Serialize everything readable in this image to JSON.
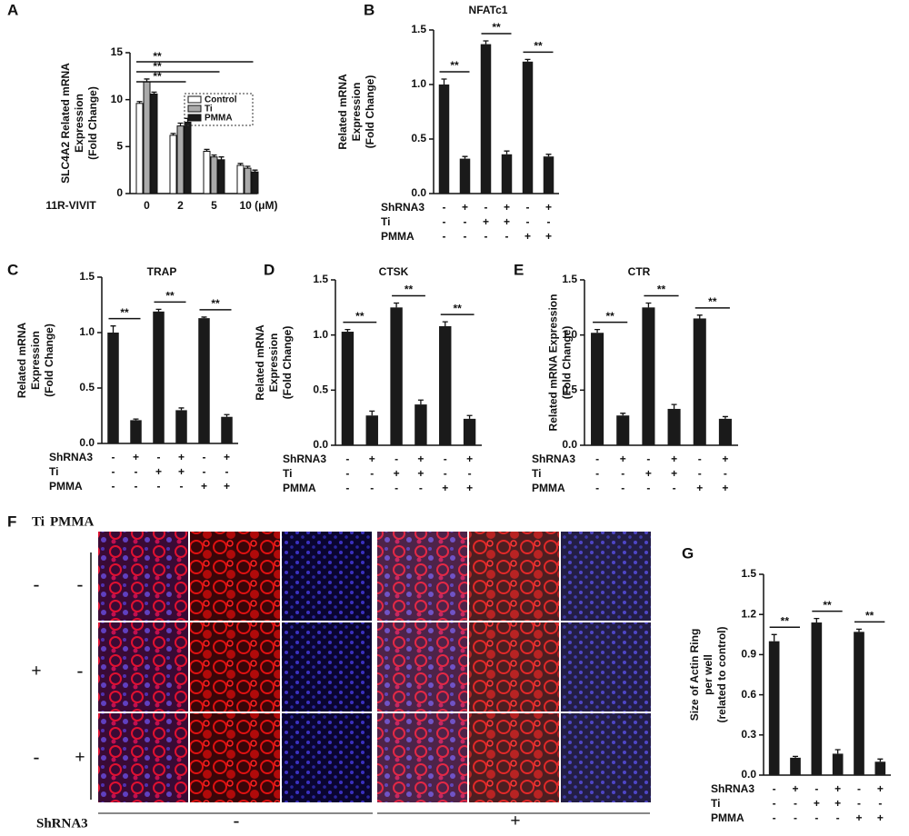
{
  "panel_labels": [
    "A",
    "B",
    "C",
    "D",
    "E",
    "F",
    "G"
  ],
  "chart_data": [
    {
      "type": "grouped-bar",
      "ylabel": [
        "SLC4A2 Related mRNA",
        "Expression",
        "(Fold Change)"
      ],
      "xlabel": "11R-VIVIT",
      "categories": [
        "0",
        "2",
        "5",
        "10 (μM)"
      ],
      "series": [
        {
          "name": "Control",
          "color": "#ffffff",
          "values": [
            9.6,
            6.2,
            4.5,
            3.0
          ],
          "errors": [
            0.2,
            0.2,
            0.2,
            0.2
          ]
        },
        {
          "name": "Ti",
          "color": "#aaaaaa",
          "values": [
            11.9,
            7.2,
            3.9,
            2.7
          ],
          "errors": [
            0.3,
            0.3,
            0.2,
            0.2
          ]
        },
        {
          "name": "PMMA",
          "color": "#1a1a1a",
          "values": [
            10.6,
            7.6,
            3.6,
            2.3
          ],
          "errors": [
            0.2,
            0.4,
            0.3,
            0.2
          ]
        }
      ],
      "ylim": [
        0,
        15
      ],
      "yticks": [
        0,
        5,
        10,
        15
      ],
      "annotations": [
        "**",
        "**",
        "**"
      ]
    },
    {
      "type": "bar",
      "title": "NFATc1",
      "ylabel": [
        "Related mRNA",
        "Expression",
        "(Fold Change)"
      ],
      "color": "#1a1a1a",
      "values": [
        1.0,
        0.32,
        1.37,
        0.36,
        1.21,
        0.34
      ],
      "errors": [
        0.05,
        0.02,
        0.03,
        0.03,
        0.02,
        0.02
      ],
      "ylim": [
        0,
        1.5
      ],
      "yticks": [
        {
          "value": 0,
          "label": "0.0"
        },
        0.5,
        {
          "value": 1,
          "label": "1.0"
        },
        1.5
      ],
      "conditions": [
        {
          "name": "ShRNA3",
          "signs": [
            "-",
            "+",
            "-",
            "+",
            "-",
            "+"
          ]
        },
        {
          "name": "Ti",
          "signs": [
            "-",
            "-",
            "+",
            "+",
            "-",
            "-"
          ]
        },
        {
          "name": "PMMA",
          "signs": [
            "-",
            "-",
            "-",
            "-",
            "+",
            "+"
          ]
        }
      ],
      "annotations": [
        "**",
        "**",
        "**"
      ]
    },
    {
      "type": "bar",
      "title": "TRAP",
      "ylabel": [
        "Related mRNA",
        "Expression",
        "(Fold Change)"
      ],
      "color": "#1a1a1a",
      "values": [
        1.0,
        0.21,
        1.19,
        0.3,
        1.13,
        0.24
      ],
      "errors": [
        0.06,
        0.01,
        0.02,
        0.02,
        0.01,
        0.02
      ],
      "ylim": [
        0,
        1.5
      ],
      "yticks": [
        {
          "value": 0,
          "label": "0.0"
        },
        0.5,
        {
          "value": 1,
          "label": "1.0"
        },
        1.5
      ],
      "conditions": [
        {
          "name": "ShRNA3",
          "signs": [
            "-",
            "+",
            "-",
            "+",
            "-",
            "+"
          ]
        },
        {
          "name": "Ti",
          "signs": [
            "-",
            "-",
            "+",
            "+",
            "-",
            "-"
          ]
        },
        {
          "name": "PMMA",
          "signs": [
            "-",
            "-",
            "-",
            "-",
            "+",
            "+"
          ]
        }
      ],
      "annotations": [
        "**",
        "**",
        "**"
      ]
    },
    {
      "type": "bar",
      "title": "CTSK",
      "ylabel": [
        "Related mRNA",
        "Expression",
        "(Fold Change)"
      ],
      "color": "#1a1a1a",
      "values": [
        1.03,
        0.27,
        1.25,
        0.37,
        1.08,
        0.24
      ],
      "errors": [
        0.02,
        0.04,
        0.04,
        0.04,
        0.04,
        0.03
      ],
      "ylim": [
        0,
        1.5
      ],
      "yticks": [
        {
          "value": 0,
          "label": "0.0"
        },
        0.5,
        {
          "value": 1,
          "label": "1.0"
        },
        1.5
      ],
      "conditions": [
        {
          "name": "ShRNA3",
          "signs": [
            "-",
            "+",
            "-",
            "+",
            "-",
            "+"
          ]
        },
        {
          "name": "Ti",
          "signs": [
            "-",
            "-",
            "+",
            "+",
            "-",
            "-"
          ]
        },
        {
          "name": "PMMA",
          "signs": [
            "-",
            "-",
            "-",
            "-",
            "+",
            "+"
          ]
        }
      ],
      "annotations": [
        "**",
        "**",
        "**"
      ]
    },
    {
      "type": "bar",
      "title": "CTR",
      "ylabel": [
        "Related mRNA Expression",
        "(Fold Change)"
      ],
      "color": "#1a1a1a",
      "values": [
        1.02,
        0.27,
        1.25,
        0.33,
        1.15,
        0.24
      ],
      "errors": [
        0.03,
        0.02,
        0.04,
        0.04,
        0.03,
        0.02
      ],
      "ylim": [
        0,
        1.5
      ],
      "yticks": [
        {
          "value": 0,
          "label": "0.0"
        },
        0.5,
        {
          "value": 1,
          "label": "1.0"
        },
        1.5
      ],
      "conditions": [
        {
          "name": "ShRNA3",
          "signs": [
            "-",
            "+",
            "-",
            "+",
            "-",
            "+"
          ]
        },
        {
          "name": "Ti",
          "signs": [
            "-",
            "-",
            "+",
            "+",
            "-",
            "-"
          ]
        },
        {
          "name": "PMMA",
          "signs": [
            "-",
            "-",
            "-",
            "-",
            "+",
            "+"
          ]
        }
      ],
      "annotations": [
        "**",
        "**",
        "**"
      ]
    },
    {
      "type": "bar",
      "ylabel": [
        "Size of Actin Ring",
        "per well",
        "(related to control)"
      ],
      "color": "#1a1a1a",
      "values": [
        1.0,
        0.13,
        1.14,
        0.16,
        1.07,
        0.1
      ],
      "errors": [
        0.05,
        0.01,
        0.03,
        0.03,
        0.02,
        0.02
      ],
      "ylim": [
        0,
        1.5
      ],
      "yticks": [
        {
          "value": 0,
          "label": "0.0"
        },
        0.3,
        0.6,
        0.9,
        1.2,
        1.5
      ],
      "conditions": [
        {
          "name": "ShRNA3",
          "signs": [
            "-",
            "+",
            "-",
            "+",
            "-",
            "+"
          ]
        },
        {
          "name": "Ti",
          "signs": [
            "-",
            "-",
            "+",
            "+",
            "-",
            "-"
          ]
        },
        {
          "name": "PMMA",
          "signs": [
            "-",
            "-",
            "-",
            "-",
            "+",
            "+"
          ]
        }
      ],
      "annotations": [
        "**",
        "**",
        "**"
      ]
    }
  ],
  "figure_f": {
    "header": [
      "Ti",
      "PMMA"
    ],
    "rows": [
      [
        "-",
        "-"
      ],
      [
        "+",
        "-"
      ],
      [
        "-",
        "+"
      ]
    ],
    "footer_label": "ShRNA3",
    "footer_groups": [
      "-",
      "+"
    ]
  }
}
